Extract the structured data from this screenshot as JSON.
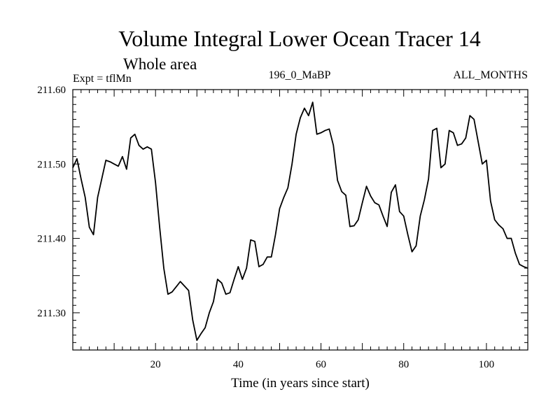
{
  "chart_data": {
    "type": "line",
    "title": "Volume Integral Lower Ocean Tracer 14",
    "subtitle": "Whole area",
    "annotations": {
      "left": "Expt = tflMn",
      "center": "196_0_MaBP",
      "right": "ALL_MONTHS"
    },
    "xlabel": "Time (in years since start)",
    "ylabel": "",
    "xlim": [
      0,
      110
    ],
    "ylim": [
      211.25,
      211.6
    ],
    "xticks": [
      20,
      40,
      60,
      80,
      100
    ],
    "yticks": [
      211.3,
      211.4,
      211.5,
      211.6
    ],
    "ytick_labels": [
      "211.30",
      "211.40",
      "211.50",
      "211.60"
    ],
    "grid": false,
    "series": [
      {
        "name": "Volume Integral Lower Ocean Tracer 14",
        "color": "#000000",
        "x": [
          0,
          1,
          2,
          3,
          4,
          5,
          6,
          7,
          8,
          9,
          10,
          11,
          12,
          13,
          14,
          15,
          16,
          17,
          18,
          19,
          20,
          21,
          22,
          23,
          24,
          25,
          26,
          27,
          28,
          29,
          30,
          31,
          32,
          33,
          34,
          35,
          36,
          37,
          38,
          39,
          40,
          41,
          42,
          43,
          44,
          45,
          46,
          47,
          48,
          49,
          50,
          51,
          52,
          53,
          54,
          55,
          56,
          57,
          58,
          59,
          60,
          61,
          62,
          63,
          64,
          65,
          66,
          67,
          68,
          69,
          70,
          71,
          72,
          73,
          74,
          75,
          76,
          77,
          78,
          79,
          80,
          81,
          82,
          83,
          84,
          85,
          86,
          87,
          88,
          89,
          90,
          91,
          92,
          93,
          94,
          95,
          96,
          97,
          98,
          99,
          100,
          101,
          102,
          103,
          104,
          105,
          106,
          107,
          108,
          109,
          110
        ],
        "values": [
          211.495,
          211.507,
          211.48,
          211.455,
          211.415,
          211.405,
          211.455,
          211.48,
          211.505,
          211.503,
          211.5,
          211.497,
          211.51,
          211.493,
          211.535,
          211.54,
          211.525,
          211.52,
          211.523,
          211.52,
          211.475,
          211.415,
          211.36,
          211.325,
          211.328,
          211.335,
          211.342,
          211.336,
          211.33,
          211.29,
          211.263,
          211.272,
          211.28,
          211.3,
          211.315,
          211.345,
          211.34,
          211.325,
          211.327,
          211.345,
          211.362,
          211.345,
          211.36,
          211.398,
          211.396,
          211.362,
          211.365,
          211.375,
          211.375,
          211.405,
          211.44,
          211.455,
          211.468,
          211.5,
          211.54,
          211.562,
          211.575,
          211.565,
          211.583,
          211.54,
          211.542,
          211.545,
          211.547,
          211.525,
          211.478,
          211.463,
          211.458,
          211.416,
          211.417,
          211.425,
          211.448,
          211.47,
          211.457,
          211.448,
          211.445,
          211.43,
          211.416,
          211.462,
          211.472,
          211.436,
          211.43,
          211.405,
          211.382,
          211.39,
          211.43,
          211.452,
          211.48,
          211.545,
          211.548,
          211.495,
          211.5,
          211.545,
          211.542,
          211.525,
          211.527,
          211.535,
          211.565,
          211.56,
          211.53,
          211.5,
          211.505,
          211.45,
          211.425,
          211.418,
          211.413,
          211.4,
          211.4,
          211.38,
          211.365,
          211.362,
          211.36
        ]
      }
    ]
  }
}
